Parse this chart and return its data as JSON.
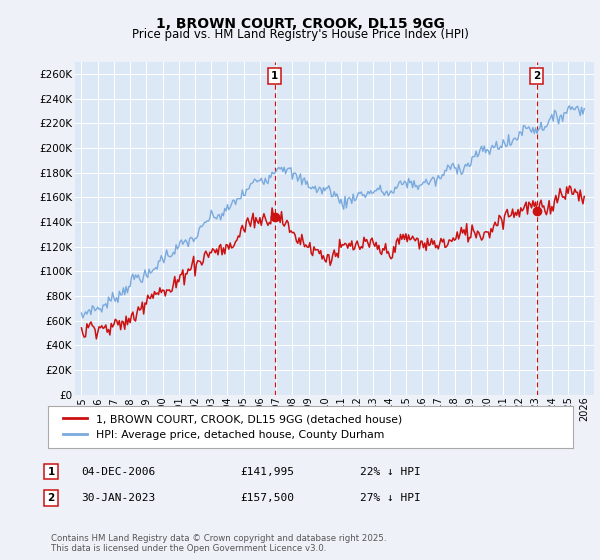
{
  "title": "1, BROWN COURT, CROOK, DL15 9GG",
  "subtitle": "Price paid vs. HM Land Registry's House Price Index (HPI)",
  "ylim": [
    0,
    270000
  ],
  "yticks": [
    0,
    20000,
    40000,
    60000,
    80000,
    100000,
    120000,
    140000,
    160000,
    180000,
    200000,
    220000,
    240000,
    260000
  ],
  "hpi_color": "#7aaadd",
  "price_color": "#cc1111",
  "vline_color": "#cc1111",
  "annotation1": {
    "label": "1",
    "date": "04-DEC-2006",
    "price": "£141,995",
    "hpi_diff": "22% ↓ HPI"
  },
  "annotation2": {
    "label": "2",
    "date": "30-JAN-2023",
    "price": "£157,500",
    "hpi_diff": "27% ↓ HPI"
  },
  "legend_entry1": "1, BROWN COURT, CROOK, DL15 9GG (detached house)",
  "legend_entry2": "HPI: Average price, detached house, County Durham",
  "footer": "Contains HM Land Registry data © Crown copyright and database right 2025.\nThis data is licensed under the Open Government Licence v3.0.",
  "background_color": "#eef2f8",
  "plot_bg_color": "#dce8f5",
  "sale_year_1": 2006.92,
  "sale_year_2": 2023.08
}
